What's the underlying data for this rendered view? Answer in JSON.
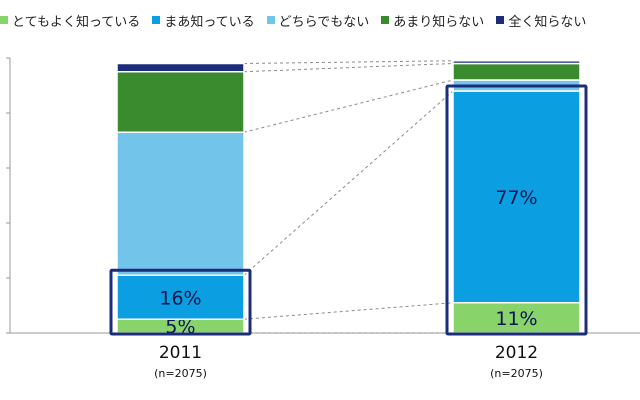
{
  "chart_data": {
    "type": "bar",
    "stacked": true,
    "categories": [
      "2011",
      "2012"
    ],
    "category_notes": [
      "(n=2075)",
      "(n=2075)"
    ],
    "ylim": [
      0,
      100
    ],
    "grid": false,
    "legend_position": "top",
    "series": [
      {
        "name": "とてもよく知っている",
        "color": "#88d36a",
        "values": [
          5,
          11
        ],
        "labels": [
          "5%",
          "11%"
        ]
      },
      {
        "name": "まあ知っている",
        "color": "#0b9ee0",
        "values": [
          16,
          77
        ],
        "labels": [
          "16%",
          "77%"
        ]
      },
      {
        "name": "どちらでもない",
        "color": "#72c4ea",
        "values": [
          52,
          4
        ],
        "labels": [
          "",
          ""
        ]
      },
      {
        "name": "あまり知らない",
        "color": "#3a8a2e",
        "values": [
          22,
          6
        ],
        "labels": [
          "",
          ""
        ]
      },
      {
        "name": "全く知らない",
        "color": "#1b2c78",
        "values": [
          3,
          1
        ],
        "labels": [
          "",
          ""
        ]
      }
    ],
    "highlight_series": [
      0,
      1
    ],
    "highlight_color": "#1b2c78"
  }
}
